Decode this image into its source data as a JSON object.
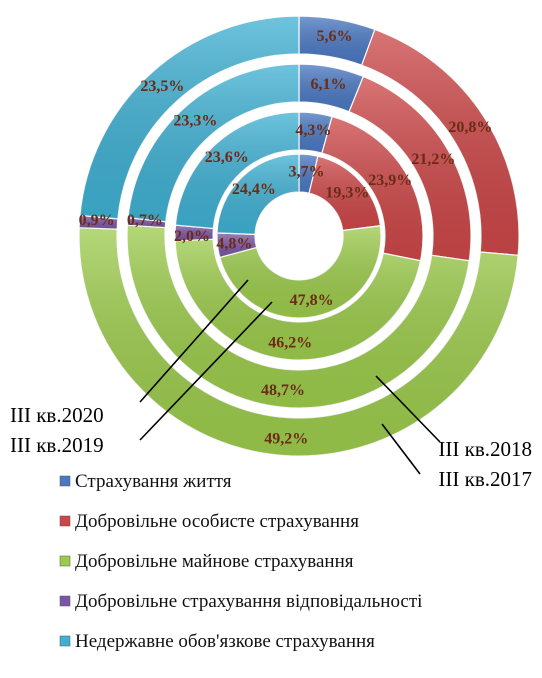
{
  "chart_data": {
    "type": "doughnut",
    "title": "",
    "categories": [
      "Страхування життя",
      "Добровільне особисте страхування",
      "Добровільне майнове страхування",
      "Добровільне страхування відповідальності",
      "Недержавне обов'язкове страхування"
    ],
    "colors": [
      "#4a78c2",
      "#cc4748",
      "#9ccb4c",
      "#7b56a6",
      "#3fb0d2"
    ],
    "series": [
      {
        "name": "III кв.2020",
        "values": [
          3.7,
          19.3,
          47.8,
          4.8,
          24.4
        ],
        "labels": [
          "3,7%",
          "19,3%",
          "47,8%",
          "4,8%",
          "24,4%"
        ]
      },
      {
        "name": "III кв.2019",
        "values": [
          4.3,
          23.9,
          46.2,
          2.0,
          23.6
        ],
        "labels": [
          "4,3%",
          "23,9%",
          "46,2%",
          "2,0%",
          "23,6%"
        ]
      },
      {
        "name": "III кв.2018",
        "values": [
          6.1,
          21.2,
          48.7,
          0.7,
          23.3
        ],
        "labels": [
          "6,1%",
          "21,2%",
          "48,7%",
          "0,7%",
          "23,3%"
        ]
      },
      {
        "name": "III кв.2017",
        "values": [
          5.6,
          20.8,
          49.2,
          0.9,
          23.5
        ],
        "labels": [
          "5,6%",
          "20,8%",
          "49,2%",
          "0,9%",
          "23,5%"
        ]
      }
    ],
    "legend": "bottom"
  }
}
